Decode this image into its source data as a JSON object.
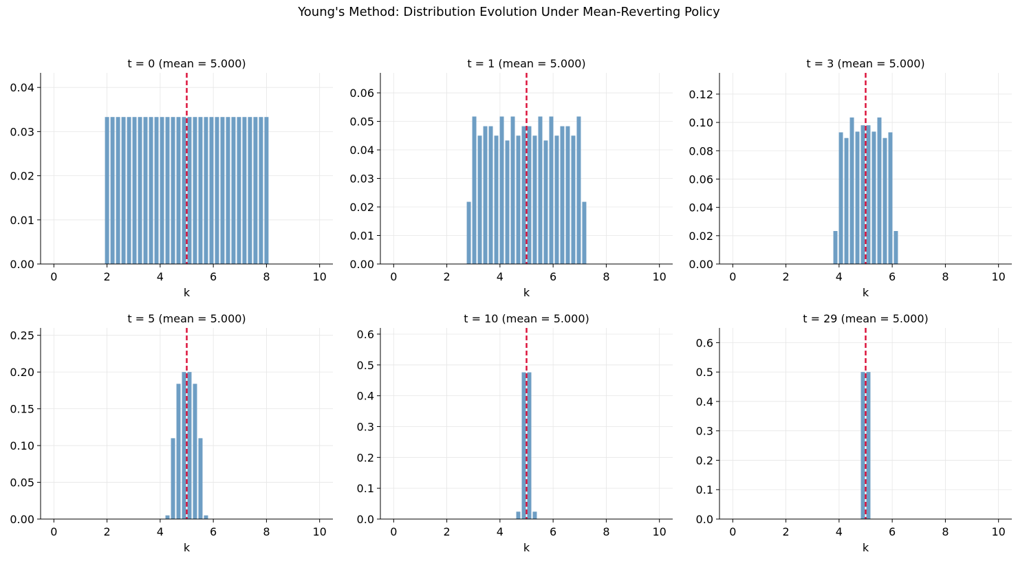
{
  "figure_title": "Young's Method: Distribution Evolution Under Mean-Reverting Policy",
  "colors": {
    "bar": "#6e9ec4",
    "mean_line": "#dc143c",
    "grid": "#e6e6e6",
    "axis": "#000000"
  },
  "chart_data": [
    {
      "type": "bar",
      "title": "t = 0  (mean = 5.000)",
      "xlabel": "k",
      "ylabel": "",
      "xlim": [
        -0.5,
        10.5
      ],
      "ylim": [
        0,
        0.0433
      ],
      "xticks": [
        0,
        2,
        4,
        6,
        8,
        10
      ],
      "xtick_labels": [
        "0",
        "2",
        "4",
        "6",
        "8",
        "10"
      ],
      "yticks": [
        0,
        0.01,
        0.02,
        0.03,
        0.04
      ],
      "ytick_labels": [
        "0.00",
        "0.01",
        "0.02",
        "0.03",
        "0.04"
      ],
      "grid": true,
      "mean": 5.0,
      "bar_width": 0.155,
      "x": [
        2.0,
        2.207,
        2.414,
        2.621,
        2.828,
        3.034,
        3.241,
        3.448,
        3.655,
        3.862,
        4.069,
        4.276,
        4.483,
        4.69,
        4.897,
        5.103,
        5.31,
        5.517,
        5.724,
        5.931,
        6.138,
        6.345,
        6.552,
        6.759,
        6.966,
        7.172,
        7.379,
        7.586,
        7.793,
        8.0
      ],
      "values": [
        0.0333,
        0.0333,
        0.0333,
        0.0333,
        0.0333,
        0.0333,
        0.0333,
        0.0333,
        0.0333,
        0.0333,
        0.0333,
        0.0333,
        0.0333,
        0.0333,
        0.0333,
        0.0333,
        0.0333,
        0.0333,
        0.0333,
        0.0333,
        0.0333,
        0.0333,
        0.0333,
        0.0333,
        0.0333,
        0.0333,
        0.0333,
        0.0333,
        0.0333,
        0.0333
      ]
    },
    {
      "type": "bar",
      "title": "t = 1  (mean = 5.000)",
      "xlabel": "k",
      "ylabel": "",
      "xlim": [
        -0.5,
        10.5
      ],
      "ylim": [
        0,
        0.067
      ],
      "xticks": [
        0,
        2,
        4,
        6,
        8,
        10
      ],
      "xtick_labels": [
        "0",
        "2",
        "4",
        "6",
        "8",
        "10"
      ],
      "yticks": [
        0,
        0.01,
        0.02,
        0.03,
        0.04,
        0.05,
        0.06
      ],
      "ytick_labels": [
        "0.00",
        "0.01",
        "0.02",
        "0.03",
        "0.04",
        "0.05",
        "0.06"
      ],
      "grid": true,
      "mean": 5.0,
      "bar_width": 0.155,
      "x": [
        2.828,
        3.034,
        3.241,
        3.448,
        3.655,
        3.862,
        4.069,
        4.276,
        4.483,
        4.69,
        4.897,
        5.103,
        5.31,
        5.517,
        5.724,
        5.931,
        6.138,
        6.345,
        6.552,
        6.759,
        6.966,
        7.172
      ],
      "values": [
        0.0218,
        0.0517,
        0.045,
        0.0483,
        0.0483,
        0.045,
        0.0517,
        0.0433,
        0.0517,
        0.045,
        0.0483,
        0.0483,
        0.045,
        0.0517,
        0.0433,
        0.0517,
        0.045,
        0.0483,
        0.0483,
        0.045,
        0.0517,
        0.0218
      ]
    },
    {
      "type": "bar",
      "title": "t = 3  (mean = 5.000)",
      "xlabel": "k",
      "ylabel": "",
      "xlim": [
        -0.5,
        10.5
      ],
      "ylim": [
        0,
        0.135
      ],
      "xticks": [
        0,
        2,
        4,
        6,
        8,
        10
      ],
      "xtick_labels": [
        "0",
        "2",
        "4",
        "6",
        "8",
        "10"
      ],
      "yticks": [
        0,
        0.02,
        0.04,
        0.06,
        0.08,
        0.1,
        0.12
      ],
      "ytick_labels": [
        "0.00",
        "0.02",
        "0.04",
        "0.06",
        "0.08",
        "0.10",
        "0.12"
      ],
      "grid": true,
      "mean": 5.0,
      "bar_width": 0.155,
      "x": [
        3.862,
        4.069,
        4.276,
        4.483,
        4.69,
        4.897,
        5.103,
        5.31,
        5.517,
        5.724,
        5.931,
        6.138
      ],
      "values": [
        0.0233,
        0.093,
        0.089,
        0.1035,
        0.0935,
        0.098,
        0.098,
        0.0935,
        0.1035,
        0.089,
        0.093,
        0.0233
      ]
    },
    {
      "type": "bar",
      "title": "t = 5  (mean = 5.000)",
      "xlabel": "k",
      "ylabel": "",
      "xlim": [
        -0.5,
        10.5
      ],
      "ylim": [
        0,
        0.26
      ],
      "xticks": [
        0,
        2,
        4,
        6,
        8,
        10
      ],
      "xtick_labels": [
        "0",
        "2",
        "4",
        "6",
        "8",
        "10"
      ],
      "yticks": [
        0,
        0.05,
        0.1,
        0.15,
        0.2,
        0.25
      ],
      "ytick_labels": [
        "0.00",
        "0.05",
        "0.10",
        "0.15",
        "0.20",
        "0.25"
      ],
      "grid": true,
      "mean": 5.0,
      "bar_width": 0.155,
      "x": [
        4.276,
        4.483,
        4.69,
        4.897,
        5.103,
        5.31,
        5.517,
        5.724
      ],
      "values": [
        0.005,
        0.11,
        0.184,
        0.2,
        0.2,
        0.184,
        0.11,
        0.005
      ]
    },
    {
      "type": "bar",
      "title": "t = 10  (mean = 5.000)",
      "xlabel": "k",
      "ylabel": "",
      "xlim": [
        -0.5,
        10.5
      ],
      "ylim": [
        0,
        0.62
      ],
      "xticks": [
        0,
        2,
        4,
        6,
        8,
        10
      ],
      "xtick_labels": [
        "0",
        "2",
        "4",
        "6",
        "8",
        "10"
      ],
      "yticks": [
        0,
        0.1,
        0.2,
        0.3,
        0.4,
        0.5,
        0.6
      ],
      "ytick_labels": [
        "0.0",
        "0.1",
        "0.2",
        "0.3",
        "0.4",
        "0.5",
        "0.6"
      ],
      "grid": true,
      "mean": 5.0,
      "bar_width": 0.155,
      "x": [
        4.69,
        4.897,
        5.103,
        5.31
      ],
      "values": [
        0.024,
        0.476,
        0.476,
        0.024
      ]
    },
    {
      "type": "bar",
      "title": "t = 29  (mean = 5.000)",
      "xlabel": "k",
      "ylabel": "",
      "xlim": [
        -0.5,
        10.5
      ],
      "ylim": [
        0,
        0.65
      ],
      "xticks": [
        0,
        2,
        4,
        6,
        8,
        10
      ],
      "xtick_labels": [
        "0",
        "2",
        "4",
        "6",
        "8",
        "10"
      ],
      "yticks": [
        0,
        0.1,
        0.2,
        0.3,
        0.4,
        0.5,
        0.6
      ],
      "ytick_labels": [
        "0.0",
        "0.1",
        "0.2",
        "0.3",
        "0.4",
        "0.5",
        "0.6"
      ],
      "grid": true,
      "mean": 5.0,
      "bar_width": 0.155,
      "x": [
        4.897,
        5.103
      ],
      "values": [
        0.5,
        0.5
      ]
    }
  ]
}
